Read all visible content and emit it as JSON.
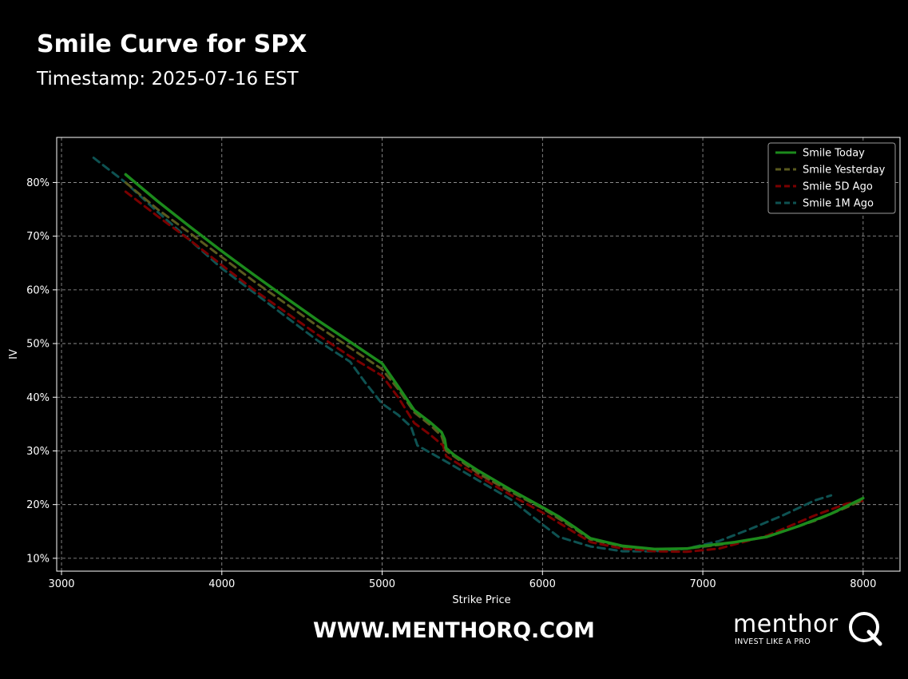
{
  "header": {
    "title": "Smile Curve for SPX",
    "subtitle": "Timestamp: 2025-07-16 EST"
  },
  "footer": {
    "website": "WWW.MENTHORQ.COM",
    "brand_word": "menthor",
    "brand_tagline": "INVEST LIKE A PRO"
  },
  "chart_data": {
    "type": "line",
    "xlabel": "Strike Price",
    "ylabel": "IV",
    "xlim": [
      2970,
      8230
    ],
    "ylim": [
      0.076,
      0.884
    ],
    "xticks": [
      3000,
      4000,
      5000,
      6000,
      7000,
      8000
    ],
    "yticks": [
      0.1,
      0.2,
      0.3,
      0.4,
      0.5,
      0.6,
      0.7,
      0.8
    ],
    "ytick_format": "percent",
    "grid": true,
    "legend_position": "top-right",
    "series": [
      {
        "name": "Smile Today",
        "color": "#1c8a1c",
        "dash": "solid",
        "points": [
          [
            3400,
            0.815
          ],
          [
            3600,
            0.765
          ],
          [
            3800,
            0.718
          ],
          [
            4000,
            0.672
          ],
          [
            4200,
            0.628
          ],
          [
            4400,
            0.585
          ],
          [
            4600,
            0.543
          ],
          [
            4800,
            0.503
          ],
          [
            5000,
            0.463
          ],
          [
            5100,
            0.42
          ],
          [
            5200,
            0.376
          ],
          [
            5300,
            0.353
          ],
          [
            5370,
            0.335
          ],
          [
            5390,
            0.322
          ],
          [
            5400,
            0.305
          ],
          [
            5450,
            0.292
          ],
          [
            5600,
            0.263
          ],
          [
            5800,
            0.228
          ],
          [
            6000,
            0.195
          ],
          [
            6100,
            0.178
          ],
          [
            6200,
            0.158
          ],
          [
            6300,
            0.137
          ],
          [
            6500,
            0.123
          ],
          [
            6700,
            0.117
          ],
          [
            6900,
            0.118
          ],
          [
            7000,
            0.123
          ],
          [
            7200,
            0.13
          ],
          [
            7400,
            0.14
          ],
          [
            7600,
            0.16
          ],
          [
            7800,
            0.183
          ],
          [
            8000,
            0.212
          ]
        ]
      },
      {
        "name": "Smile Yesterday",
        "color": "#5a5a1e",
        "dash": "dashed",
        "points": [
          [
            3400,
            0.8
          ],
          [
            3600,
            0.75
          ],
          [
            3800,
            0.706
          ],
          [
            4000,
            0.661
          ],
          [
            4200,
            0.616
          ],
          [
            4400,
            0.574
          ],
          [
            4600,
            0.532
          ],
          [
            4800,
            0.492
          ],
          [
            5000,
            0.452
          ],
          [
            5100,
            0.415
          ],
          [
            5200,
            0.372
          ],
          [
            5300,
            0.348
          ],
          [
            5370,
            0.328
          ],
          [
            5400,
            0.3
          ],
          [
            5600,
            0.258
          ],
          [
            5800,
            0.224
          ],
          [
            6000,
            0.193
          ],
          [
            6200,
            0.155
          ],
          [
            6300,
            0.135
          ],
          [
            6500,
            0.122
          ],
          [
            6700,
            0.117
          ],
          [
            6900,
            0.118
          ],
          [
            7100,
            0.125
          ],
          [
            7400,
            0.14
          ],
          [
            7700,
            0.17
          ],
          [
            8000,
            0.208
          ]
        ]
      },
      {
        "name": "Smile 5D Ago",
        "color": "#7a0000",
        "dash": "dashed",
        "points": [
          [
            3400,
            0.783
          ],
          [
            3600,
            0.737
          ],
          [
            3800,
            0.693
          ],
          [
            4000,
            0.646
          ],
          [
            4200,
            0.6
          ],
          [
            4400,
            0.558
          ],
          [
            4600,
            0.516
          ],
          [
            4800,
            0.476
          ],
          [
            5000,
            0.44
          ],
          [
            5100,
            0.4
          ],
          [
            5200,
            0.352
          ],
          [
            5300,
            0.33
          ],
          [
            5380,
            0.31
          ],
          [
            5400,
            0.29
          ],
          [
            5600,
            0.253
          ],
          [
            5800,
            0.218
          ],
          [
            6000,
            0.185
          ],
          [
            6200,
            0.148
          ],
          [
            6300,
            0.13
          ],
          [
            6500,
            0.118
          ],
          [
            6700,
            0.113
          ],
          [
            6900,
            0.112
          ],
          [
            7100,
            0.118
          ],
          [
            7400,
            0.142
          ],
          [
            7700,
            0.18
          ],
          [
            7900,
            0.202
          ],
          [
            8000,
            0.207
          ]
        ]
      },
      {
        "name": "Smile 1M Ago",
        "color": "#0e5252",
        "dash": "dashed",
        "points": [
          [
            3200,
            0.846
          ],
          [
            3400,
            0.8
          ],
          [
            3600,
            0.745
          ],
          [
            3800,
            0.693
          ],
          [
            4000,
            0.64
          ],
          [
            4200,
            0.595
          ],
          [
            4400,
            0.55
          ],
          [
            4600,
            0.505
          ],
          [
            4800,
            0.466
          ],
          [
            4900,
            0.425
          ],
          [
            5000,
            0.388
          ],
          [
            5100,
            0.367
          ],
          [
            5180,
            0.345
          ],
          [
            5220,
            0.31
          ],
          [
            5400,
            0.28
          ],
          [
            5600,
            0.245
          ],
          [
            5800,
            0.21
          ],
          [
            6000,
            0.163
          ],
          [
            6100,
            0.14
          ],
          [
            6300,
            0.122
          ],
          [
            6500,
            0.113
          ],
          [
            6700,
            0.113
          ],
          [
            6900,
            0.118
          ],
          [
            7100,
            0.132
          ],
          [
            7300,
            0.155
          ],
          [
            7500,
            0.18
          ],
          [
            7700,
            0.208
          ],
          [
            7800,
            0.217
          ]
        ]
      }
    ]
  }
}
